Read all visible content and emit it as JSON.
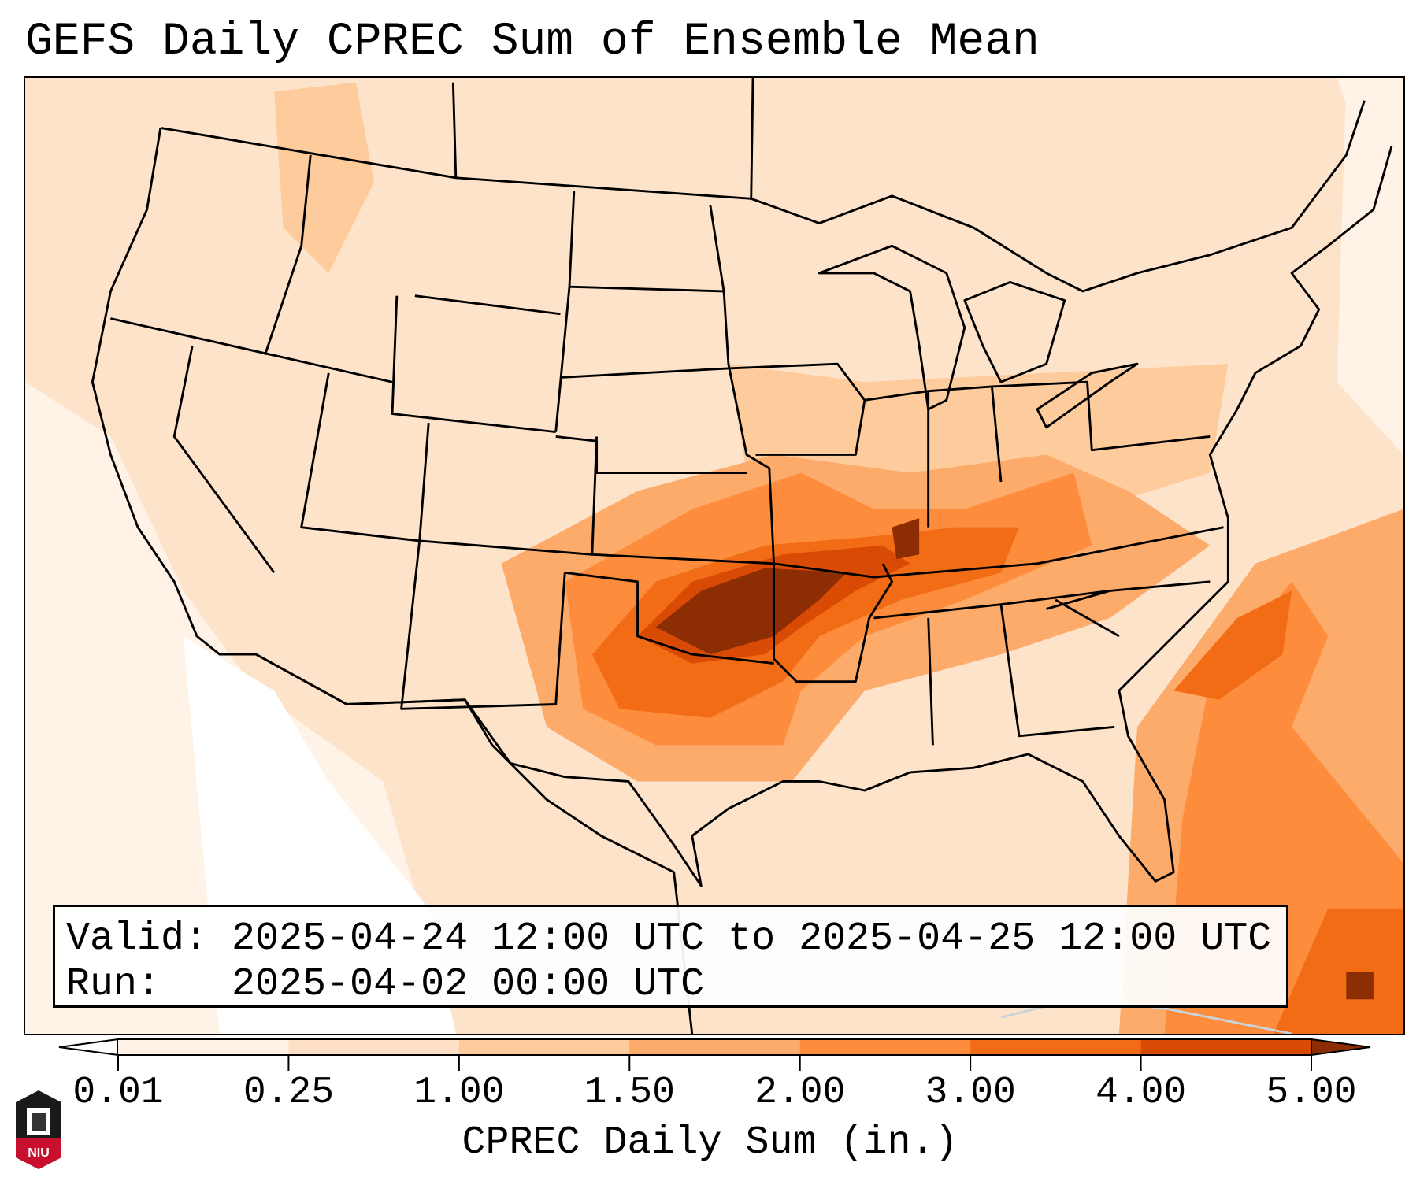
{
  "title": "GEFS Daily CPREC Sum of Ensemble Mean",
  "legend": {
    "valid_line": "Valid: 2025-04-24 12:00 UTC to 2025-04-25 12:00 UTC",
    "run_line": "Run:   2025-04-02 00:00 UTC"
  },
  "logo_text": "NIU",
  "chart_data": {
    "type": "heatmap",
    "title": "GEFS Daily CPREC Sum of Ensemble Mean",
    "variable": "CPREC Daily Sum (in.)",
    "colorbar": {
      "label": "CPREC Daily Sum (in.)",
      "ticks": [
        "0.01",
        "0.25",
        "1.00",
        "1.50",
        "2.00",
        "3.00",
        "4.00",
        "5.00"
      ],
      "bins": [
        {
          "range": [
            0.01,
            0.25
          ],
          "color": "#fff1e5"
        },
        {
          "range": [
            0.25,
            1.0
          ],
          "color": "#fee0c6"
        },
        {
          "range": [
            1.0,
            1.5
          ],
          "color": "#fdcb9c"
        },
        {
          "range": [
            1.5,
            2.0
          ],
          "color": "#fdab6a"
        },
        {
          "range": [
            2.0,
            3.0
          ],
          "color": "#fd8c3c"
        },
        {
          "range": [
            3.0,
            4.0
          ],
          "color": "#f26c15"
        },
        {
          "range": [
            4.0,
            5.0
          ],
          "color": "#d94b04"
        }
      ],
      "under_color": "#ffffff",
      "over_color": "#8c2d04",
      "extend": "both"
    },
    "region": "Contiguous United States",
    "max_region": "Oklahoma to Kentucky/Tennessee; offshore Southeast Atlantic"
  }
}
